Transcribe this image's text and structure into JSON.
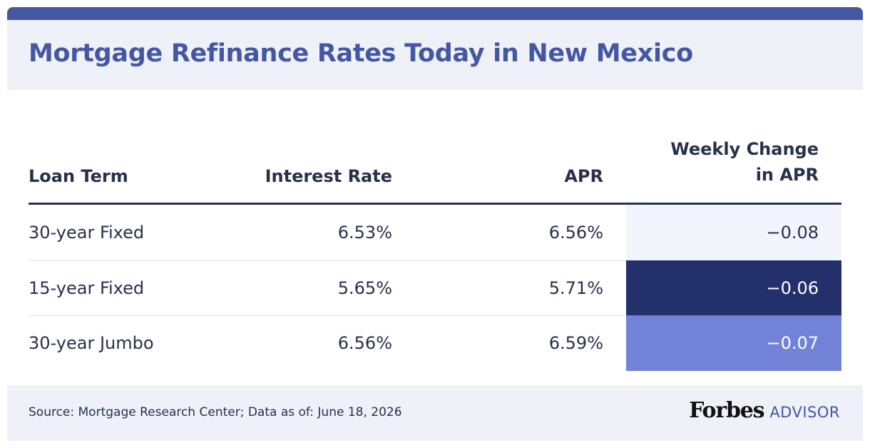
{
  "chart_data": {
    "type": "table",
    "title": "Mortgage Refinance Rates Today in New Mexico",
    "columns": [
      "Loan Term",
      "Interest Rate",
      "APR",
      "Weekly Change in APR"
    ],
    "column_header_lines": {
      "weekly_change": [
        "Weekly Change",
        "in APR"
      ]
    },
    "rows": [
      {
        "loan_term": "30-year Fixed",
        "interest_rate": "6.53%",
        "apr": "6.56%",
        "weekly_change": "−0.08",
        "weekly_change_value": -0.08,
        "cell_color": "#f2f5fc",
        "text_color": "#27314a"
      },
      {
        "loan_term": "15-year Fixed",
        "interest_rate": "5.65%",
        "apr": "5.71%",
        "weekly_change": "−0.06",
        "weekly_change_value": -0.06,
        "cell_color": "#24306b",
        "text_color": "#ffffff"
      },
      {
        "loan_term": "30-year Jumbo",
        "interest_rate": "6.56%",
        "apr": "6.59%",
        "weekly_change": "−0.07",
        "weekly_change_value": -0.07,
        "cell_color": "#7282d6",
        "text_color": "#ffffff"
      }
    ],
    "source": "Source: Mortgage Research Center; Data as of: June 18, 2026"
  },
  "brand": {
    "name": "Forbes",
    "suffix": "ADVISOR",
    "logo_icon": "forbes-advisor-logo"
  },
  "colors": {
    "accent": "#4556a3",
    "text": "#27314a",
    "panel_background": "#eef1f8"
  }
}
